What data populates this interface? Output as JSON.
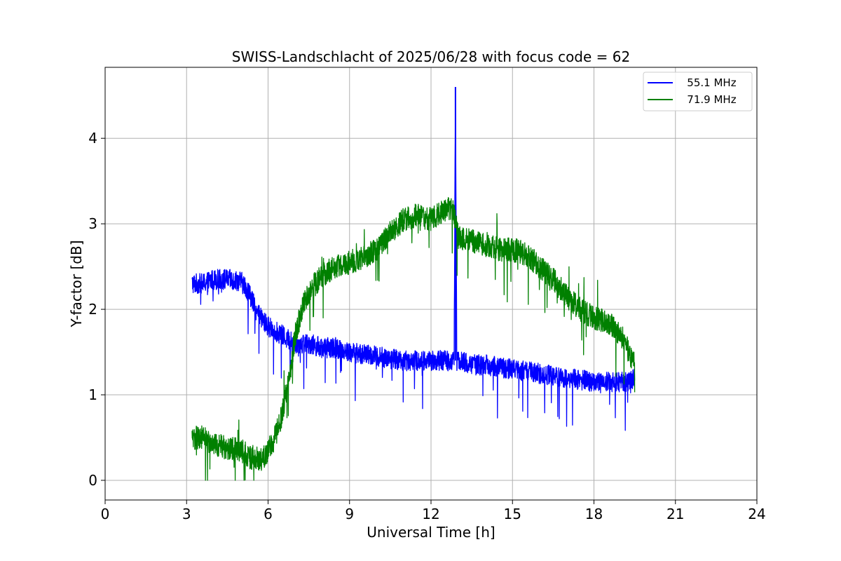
{
  "chart_data": {
    "type": "line",
    "title": "SWISS-Landschlacht of 2025/06/28 with focus code = 62",
    "xlabel": "Universal Time [h]",
    "ylabel": "Y-factor [dB]",
    "xlim": [
      0,
      24
    ],
    "ylim": [
      -0.23,
      4.83
    ],
    "xticks": [
      0,
      3,
      6,
      9,
      12,
      15,
      18,
      21,
      24
    ],
    "xtick_labels": [
      "0",
      "3",
      "6",
      "9",
      "12",
      "15",
      "18",
      "21",
      "24"
    ],
    "yticks": [
      0,
      1,
      2,
      3,
      4
    ],
    "ytick_labels": [
      "0",
      "1",
      "2",
      "3",
      "4"
    ],
    "grid": true,
    "legend_position": "upper-right",
    "series": [
      {
        "name": "55.1 MHz",
        "legend_label": "   55.1 MHz",
        "color": "#0000ff",
        "noise": 0.12,
        "x": [
          3.2,
          3.6,
          4.0,
          4.5,
          5.0,
          5.3,
          5.6,
          6.0,
          6.5,
          7.0,
          7.5,
          8.0,
          8.5,
          9.0,
          10.0,
          11.0,
          12.0,
          12.85,
          12.9,
          12.95,
          13.5,
          14.0,
          15.0,
          16.0,
          17.0,
          18.0,
          18.5,
          19.0,
          19.3,
          19.5
        ],
        "y": [
          2.3,
          2.3,
          2.35,
          2.35,
          2.33,
          2.2,
          1.95,
          1.8,
          1.7,
          1.6,
          1.6,
          1.55,
          1.55,
          1.5,
          1.45,
          1.4,
          1.4,
          1.4,
          4.6,
          1.4,
          1.35,
          1.35,
          1.3,
          1.25,
          1.2,
          1.15,
          1.15,
          1.15,
          1.15,
          1.2
        ]
      },
      {
        "name": "71.9 MHz",
        "legend_label": "   71.9 MHz",
        "color": "#008000",
        "noise": 0.14,
        "x": [
          3.2,
          3.6,
          4.0,
          4.5,
          5.0,
          5.4,
          5.8,
          6.2,
          6.5,
          6.8,
          7.0,
          7.3,
          7.6,
          8.0,
          8.5,
          9.0,
          9.5,
          10.0,
          10.5,
          11.0,
          11.5,
          12.0,
          12.5,
          12.8,
          13.0,
          13.5,
          14.0,
          14.5,
          15.0,
          15.5,
          16.0,
          16.5,
          17.0,
          17.5,
          18.0,
          18.5,
          19.0,
          19.3,
          19.5
        ],
        "y": [
          0.5,
          0.5,
          0.42,
          0.38,
          0.35,
          0.25,
          0.25,
          0.45,
          0.75,
          1.25,
          1.7,
          2.05,
          2.25,
          2.4,
          2.5,
          2.55,
          2.6,
          2.7,
          2.9,
          3.05,
          3.1,
          3.05,
          3.15,
          3.2,
          2.85,
          2.8,
          2.75,
          2.7,
          2.7,
          2.65,
          2.5,
          2.35,
          2.15,
          2.0,
          1.9,
          1.85,
          1.7,
          1.5,
          1.35
        ]
      }
    ]
  }
}
